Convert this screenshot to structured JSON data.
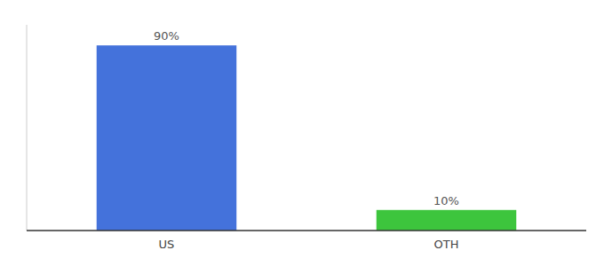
{
  "chart_data": {
    "type": "bar",
    "categories": [
      "US",
      "OTH"
    ],
    "values": [
      90,
      10
    ],
    "colors": [
      "#4472db",
      "#3dc53d"
    ],
    "value_labels": [
      "90%",
      "10%"
    ],
    "data_labels": true,
    "ylim": [
      0,
      100
    ],
    "tick_labels": "x"
  }
}
